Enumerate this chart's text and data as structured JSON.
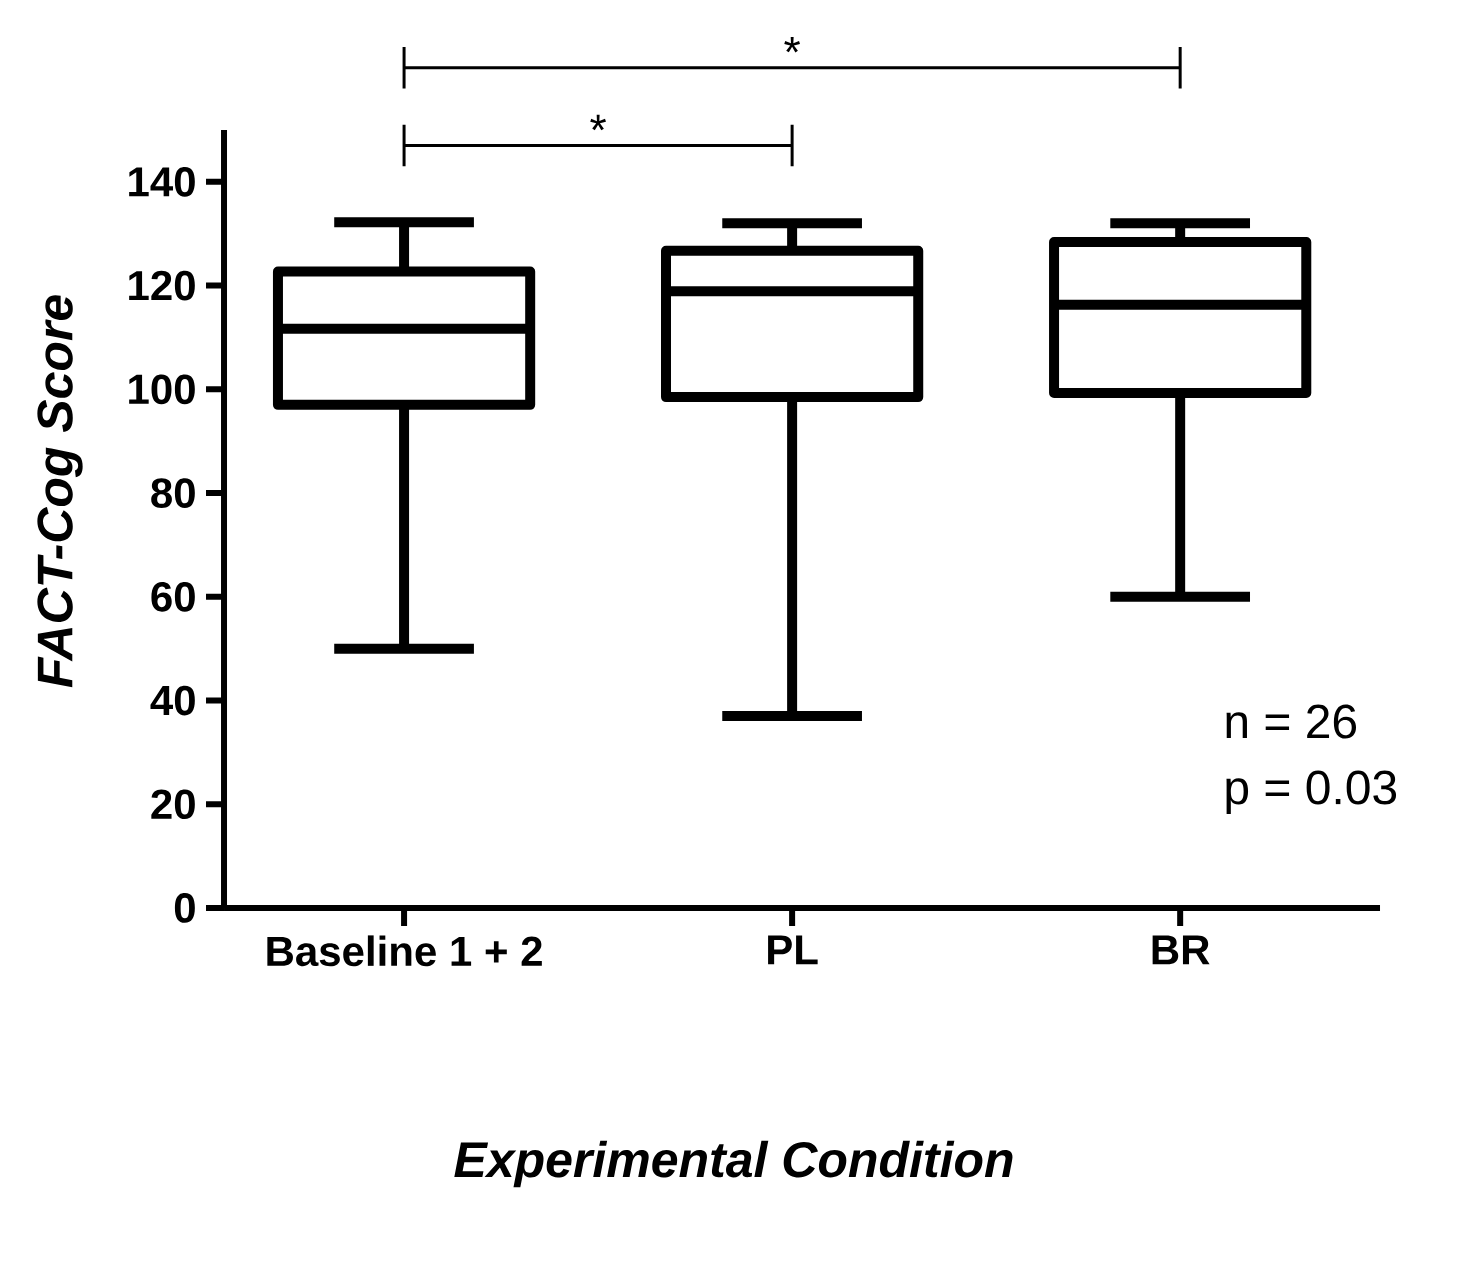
{
  "chart_data": {
    "type": "box",
    "xlabel": "*Experimental Condition*",
    "ylabel": "*FACT-Cog Score*",
    "categories": [
      "Baseline 1 + 2",
      "PL",
      "BR"
    ],
    "boxes": [
      {
        "low": 50,
        "q1": 97,
        "median": 111.7,
        "q3": 122.7,
        "high": 132.2
      },
      {
        "low": 37,
        "q1": 98.5,
        "median": 118.9,
        "q3": 126.7,
        "high": 132
      },
      {
        "low": 60,
        "q1": 99.3,
        "median": 116.3,
        "q3": 128.4,
        "high": 132
      }
    ],
    "color": "#000000",
    "ylim": [
      0,
      150
    ],
    "yticks": [
      0,
      20,
      40,
      60,
      80,
      100,
      120,
      140
    ],
    "annotations": [
      "*",
      "*",
      "n = 26",
      "p = 0.03"
    ]
  }
}
